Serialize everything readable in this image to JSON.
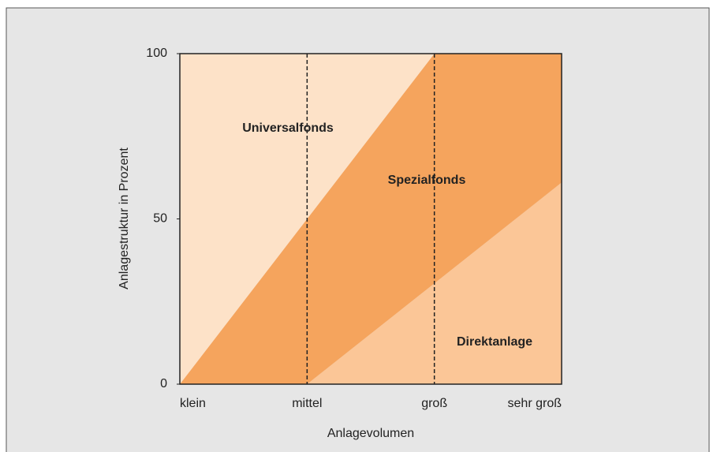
{
  "chart_data": {
    "type": "stacked_area",
    "categories": [
      "klein",
      "mittel",
      "groß",
      "sehr groß"
    ],
    "series": [
      {
        "name": "Direktanlage",
        "color": "#fbc697",
        "values": [
          0,
          0,
          30.5,
          61
        ]
      },
      {
        "name": "Spezialfonds",
        "color": "#f5a45d",
        "values": [
          0,
          50,
          69.5,
          39
        ]
      },
      {
        "name": "Universalfonds",
        "color": "#fde2c8",
        "values": [
          100,
          50,
          0,
          0
        ]
      }
    ],
    "xlabel": "Anlagevolumen",
    "ylabel": "Anlagestruktur in Prozent",
    "ylim": [
      0,
      100
    ],
    "yticks": [
      0,
      50,
      100
    ]
  }
}
